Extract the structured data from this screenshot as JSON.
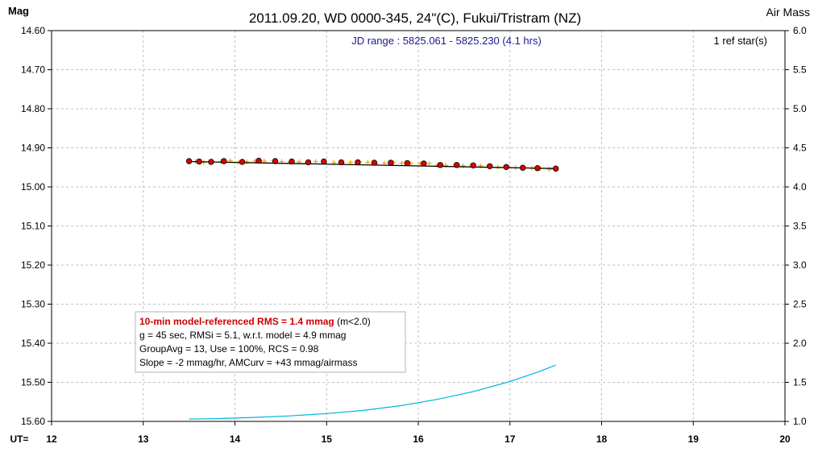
{
  "chart_data": {
    "type": "scatter",
    "title": "2011.09.20, WD 0000-345, 24\"(C), Fukui/Tristram (NZ)",
    "ylabel_left": "Mag",
    "ylabel_right": "Air Mass",
    "xlabel": "UT=",
    "xlim": [
      12,
      20
    ],
    "ylim_left": [
      15.6,
      14.6
    ],
    "ylim_right": [
      1.0,
      6.0
    ],
    "x_ticks": [
      "12",
      "13",
      "14",
      "15",
      "16",
      "17",
      "18",
      "19",
      "20"
    ],
    "y_ticks_left": [
      "14.60",
      "14.70",
      "14.80",
      "14.90",
      "15.00",
      "15.10",
      "15.20",
      "15.30",
      "15.40",
      "15.50",
      "15.60"
    ],
    "y_ticks_right": [
      "6.0",
      "5.5",
      "5.0",
      "4.5",
      "4.0",
      "3.5",
      "3.0",
      "2.5",
      "2.0",
      "1.5",
      "1.0"
    ],
    "grid": true,
    "jd_range": "JD range : 5825.061 - 5825.230 (4.1 hrs)",
    "ref_stars": "1 ref star(s)",
    "colors": {
      "individual_points": "#e8a800",
      "group_avg_fill": "#dd0000",
      "model_line": "#000000",
      "airmass": "#00b4d8",
      "jd_text": "#1a1a8c",
      "rms_text": "#cc0000"
    },
    "series": [
      {
        "x": [
          13.5,
          13.57,
          13.66,
          13.75,
          13.85,
          13.95,
          14.04,
          14.13,
          14.22,
          14.32,
          14.42,
          14.51,
          14.6,
          14.7,
          14.79,
          14.88,
          14.98,
          15.08,
          15.17,
          15.26,
          15.36,
          15.45,
          15.54,
          15.63,
          15.73,
          15.82,
          15.92,
          16.02,
          16.12,
          16.21,
          16.3,
          16.4,
          16.49,
          16.58,
          16.68,
          16.78,
          16.87,
          16.96,
          17.06,
          17.15,
          17.24,
          17.33,
          17.43,
          17.5
        ],
        "y": [
          14.936,
          14.935,
          14.937,
          14.933,
          14.935,
          14.933,
          14.937,
          14.936,
          14.934,
          14.934,
          14.933,
          14.935,
          14.936,
          14.936,
          14.937,
          14.935,
          14.935,
          14.938,
          14.938,
          14.937,
          14.936,
          14.937,
          14.94,
          14.939,
          14.938,
          14.939,
          14.94,
          14.941,
          14.94,
          14.944,
          14.945,
          14.943,
          14.946,
          14.944,
          14.946,
          14.947,
          14.949,
          14.948,
          14.951,
          14.952,
          14.952,
          14.953,
          14.955,
          14.956
        ]
      },
      {
        "x": [
          13.5,
          13.61,
          13.74,
          13.88,
          14.08,
          14.26,
          14.44,
          14.62,
          14.8,
          14.97,
          15.16,
          15.34,
          15.52,
          15.7,
          15.88,
          16.06,
          16.24,
          16.42,
          16.6,
          16.78,
          16.96,
          17.14,
          17.3,
          17.5
        ],
        "y": [
          14.934,
          14.935,
          14.936,
          14.934,
          14.936,
          14.933,
          14.934,
          14.935,
          14.937,
          14.935,
          14.937,
          14.937,
          14.938,
          14.938,
          14.939,
          14.94,
          14.944,
          14.944,
          14.945,
          14.947,
          14.949,
          14.951,
          14.952,
          14.953
        ]
      },
      {
        "x": [
          13.5,
          17.5
        ],
        "y": [
          14.935,
          14.953
        ]
      },
      {
        "x": [
          13.5,
          13.8,
          14.2,
          14.6,
          15.0,
          15.4,
          15.8,
          16.2,
          16.6,
          17.0,
          17.3,
          17.5
        ],
        "y": [
          1.03,
          1.035,
          1.05,
          1.07,
          1.1,
          1.14,
          1.2,
          1.28,
          1.38,
          1.51,
          1.63,
          1.72
        ]
      }
    ],
    "info_box": {
      "rms_line": "10-min model-referenced RMS = 1.4 mmag",
      "rms_suffix": " (m<2.0)",
      "line2": "g = 45 sec, RMSi = 5.1, w.r.t. model = 4.9 mmag",
      "line3": "GroupAvg = 13, Use = 100%, RCS = 0.98",
      "line4": "Slope = -2 mmag/hr, AMCurv = +43 mmag/airmass"
    }
  }
}
